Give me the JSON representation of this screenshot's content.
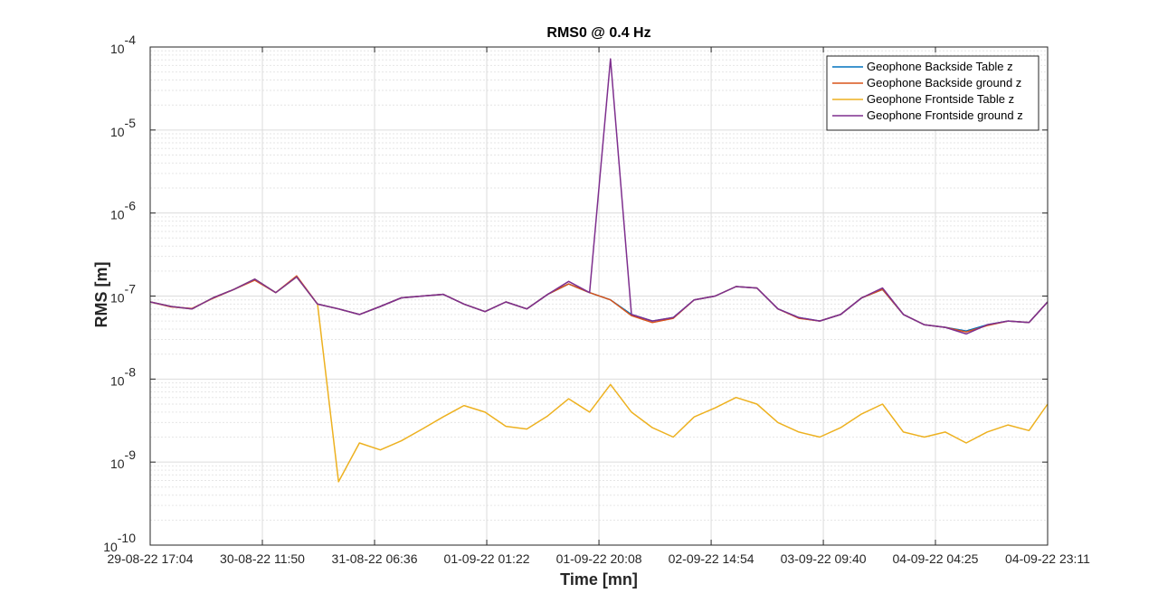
{
  "chart_data": {
    "type": "line",
    "title": "RMS0 @ 0.4 Hz",
    "xlabel": "Time [mn]",
    "ylabel": "RMS [m]",
    "yscale": "log",
    "ylim": [
      1e-10,
      0.0001
    ],
    "y_tick_values": [
      1e-10,
      1e-09,
      1e-08,
      1e-07,
      1e-06,
      1e-05,
      0.0001
    ],
    "y_tick_labels": [
      {
        "base": "10",
        "exp": "-10"
      },
      {
        "base": "10",
        "exp": "-9"
      },
      {
        "base": "10",
        "exp": "-8"
      },
      {
        "base": "10",
        "exp": "-7"
      },
      {
        "base": "10",
        "exp": "-6"
      },
      {
        "base": "10",
        "exp": "-5"
      },
      {
        "base": "10",
        "exp": "-4"
      }
    ],
    "xlim": [
      "29-08-22 17:04",
      "04-09-22 23:11"
    ],
    "x_tick_labels": [
      "29-08-22 17:04",
      "30-08-22 11:50",
      "31-08-22 06:36",
      "01-09-22 01:22",
      "01-09-22 20:08",
      "02-09-22 14:54",
      "03-09-22 09:40",
      "04-09-22 04:25",
      "04-09-22 23:11"
    ],
    "grid": true,
    "legend_position": "top-right",
    "x": [
      "29-08-22 17:04",
      "29-08-22 20:34",
      "30-08-22 00:04",
      "30-08-22 03:34",
      "30-08-22 07:04",
      "30-08-22 10:34",
      "30-08-22 14:04",
      "30-08-22 17:34",
      "30-08-22 21:04",
      "31-08-22 00:34",
      "31-08-22 04:04",
      "31-08-22 07:34",
      "31-08-22 11:04",
      "31-08-22 14:34",
      "31-08-22 18:04",
      "31-08-22 21:34",
      "01-09-22 01:04",
      "01-09-22 04:34",
      "01-09-22 08:04",
      "01-09-22 11:34",
      "01-09-22 15:04",
      "01-09-22 18:34",
      "01-09-22 22:04",
      "02-09-22 01:34",
      "02-09-22 05:04",
      "02-09-22 08:34",
      "02-09-22 12:04",
      "02-09-22 15:34",
      "02-09-22 19:04",
      "02-09-22 22:34",
      "03-09-22 02:04",
      "03-09-22 05:34",
      "03-09-22 09:04",
      "03-09-22 12:34",
      "03-09-22 16:04",
      "03-09-22 19:34",
      "03-09-22 23:04",
      "04-09-22 02:34",
      "04-09-22 06:04",
      "04-09-22 09:34",
      "04-09-22 13:04",
      "04-09-22 16:34",
      "04-09-22 20:04",
      "04-09-22 23:11"
    ],
    "series": [
      {
        "name": "Geophone Backside Table z",
        "color": "#0072bd",
        "values": [
          8.5e-08,
          7.5e-08,
          7e-08,
          9.5e-08,
          1.2e-07,
          1.6e-07,
          1.1e-07,
          1.7e-07,
          8e-08,
          7e-08,
          6e-08,
          7.5e-08,
          9.5e-08,
          1e-07,
          1.05e-07,
          8e-08,
          6.5e-08,
          8.5e-08,
          7e-08,
          1.05e-07,
          1.4e-07,
          1.1e-07,
          9e-08,
          6e-08,
          5e-08,
          5.5e-08,
          9e-08,
          1e-07,
          1.3e-07,
          1.25e-07,
          7e-08,
          5.5e-08,
          5e-08,
          6e-08,
          9.5e-08,
          1.2e-07,
          6e-08,
          4.5e-08,
          4.2e-08,
          3.8e-08,
          4.5e-08,
          5e-08,
          4.8e-08,
          8.5e-08
        ]
      },
      {
        "name": "Geophone Backside ground z",
        "color": "#d95319",
        "values": [
          8.5e-08,
          7.4e-08,
          7.1e-08,
          9.4e-08,
          1.2e-07,
          1.55e-07,
          1.1e-07,
          1.75e-07,
          8e-08,
          7e-08,
          6e-08,
          7.5e-08,
          9.5e-08,
          1e-07,
          1.05e-07,
          8e-08,
          6.5e-08,
          8.5e-08,
          7e-08,
          1.05e-07,
          1.4e-07,
          1.1e-07,
          9e-08,
          5.8e-08,
          4.8e-08,
          5.4e-08,
          9e-08,
          1e-07,
          1.3e-07,
          1.25e-07,
          7e-08,
          5.4e-08,
          5e-08,
          6e-08,
          9.5e-08,
          1.2e-07,
          6e-08,
          4.5e-08,
          4.2e-08,
          3.7e-08,
          4.4e-08,
          5e-08,
          4.8e-08,
          8.5e-08
        ]
      },
      {
        "name": "Geophone Frontside Table z",
        "color": "#edb120",
        "values": [
          8.5e-08,
          7.5e-08,
          7e-08,
          9.5e-08,
          1.2e-07,
          1.6e-07,
          1.1e-07,
          1.7e-07,
          8e-08,
          5.8e-10,
          1.7e-09,
          1.4e-09,
          1.8e-09,
          2.5e-09,
          3.5e-09,
          4.8e-09,
          4e-09,
          2.7e-09,
          2.5e-09,
          3.6e-09,
          5.8e-09,
          4e-09,
          8.6e-09,
          4e-09,
          2.6e-09,
          2e-09,
          3.5e-09,
          4.5e-09,
          6e-09,
          5e-09,
          3e-09,
          2.3e-09,
          2e-09,
          2.6e-09,
          3.8e-09,
          5e-09,
          2.3e-09,
          2e-09,
          2.3e-09,
          1.7e-09,
          2.3e-09,
          2.8e-09,
          2.4e-09,
          5e-09
        ]
      },
      {
        "name": "Geophone Frontside ground z",
        "color": "#7e2f8e",
        "values": [
          8.5e-08,
          7.5e-08,
          7e-08,
          9.5e-08,
          1.2e-07,
          1.6e-07,
          1.1e-07,
          1.7e-07,
          8e-08,
          7e-08,
          6e-08,
          7.5e-08,
          9.5e-08,
          1e-07,
          1.05e-07,
          8e-08,
          6.5e-08,
          8.5e-08,
          7e-08,
          1.05e-07,
          1.5e-07,
          1.1e-07,
          7.2e-05,
          6e-08,
          5e-08,
          5.5e-08,
          9e-08,
          1e-07,
          1.3e-07,
          1.25e-07,
          7e-08,
          5.5e-08,
          5e-08,
          6e-08,
          9.5e-08,
          1.25e-07,
          6e-08,
          4.5e-08,
          4.2e-08,
          3.5e-08,
          4.5e-08,
          5e-08,
          4.8e-08,
          8.5e-08
        ]
      }
    ]
  }
}
